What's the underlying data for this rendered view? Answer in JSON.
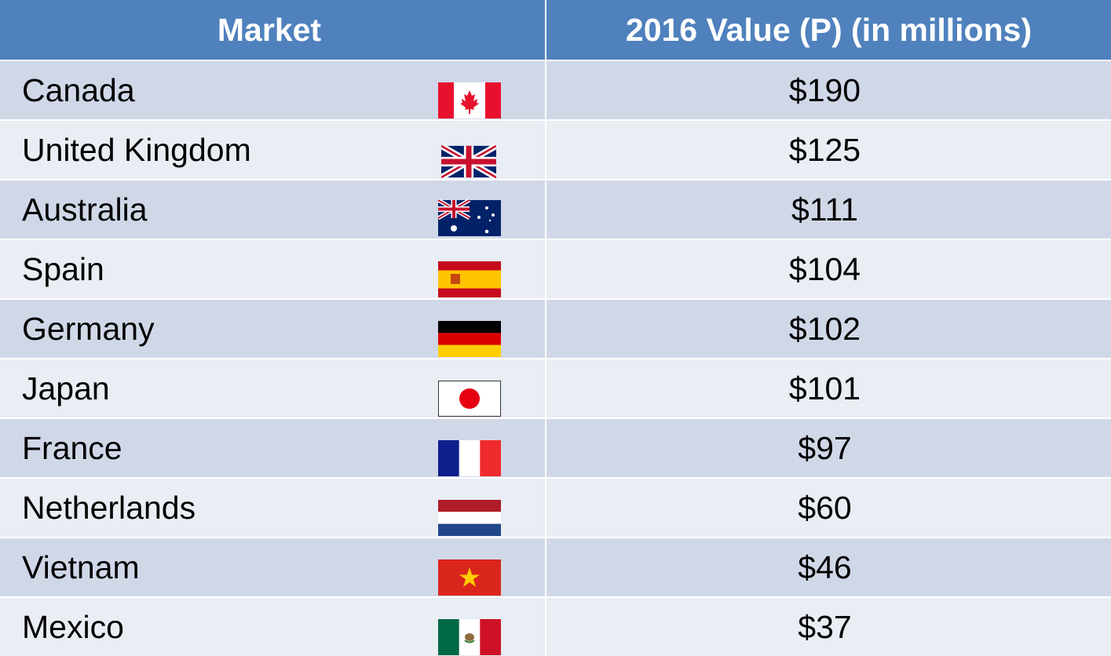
{
  "table": {
    "header": [
      "Market",
      "2016 Value (P) (in millions)"
    ],
    "rows": [
      [
        "Canada",
        "$190"
      ],
      [
        "United Kingdom",
        "$125"
      ],
      [
        "Australia",
        "$111"
      ],
      [
        "Spain",
        "$104"
      ],
      [
        "Germany",
        "$102"
      ],
      [
        "Japan",
        "$101"
      ],
      [
        "France",
        "$97"
      ],
      [
        "Netherlands",
        "$60"
      ],
      [
        "Vietnam",
        "$46"
      ],
      [
        "Mexico",
        "$37"
      ]
    ]
  }
}
